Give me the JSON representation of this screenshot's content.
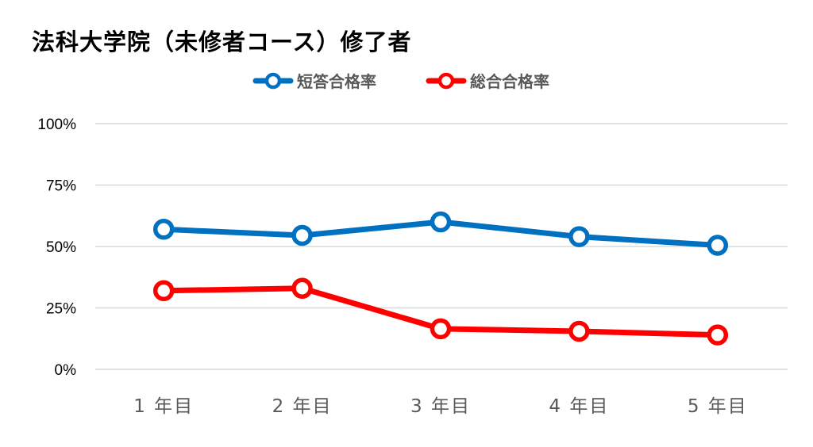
{
  "chart_data": {
    "type": "line",
    "title": "法科大学院（未修者コース）修了者",
    "categories": [
      "1年目",
      "2年目",
      "3年目",
      "4年目",
      "5年目"
    ],
    "category_labels": [
      "1 年目",
      "2 年目",
      "3 年目",
      "4 年目",
      "5 年目"
    ],
    "ylim": [
      0,
      100
    ],
    "yticks": [
      0,
      25,
      50,
      75,
      100
    ],
    "ytick_labels": [
      "0%",
      "25%",
      "50%",
      "75%",
      "100%"
    ],
    "grid": true,
    "legend_position": "top",
    "series": [
      {
        "name": "短答合格率",
        "color": "#0070C0",
        "values": [
          57,
          54.5,
          60,
          54,
          50.5
        ]
      },
      {
        "name": "総合合格率",
        "color": "#FF0000",
        "values": [
          32,
          33,
          16.5,
          15.5,
          14
        ]
      }
    ]
  }
}
